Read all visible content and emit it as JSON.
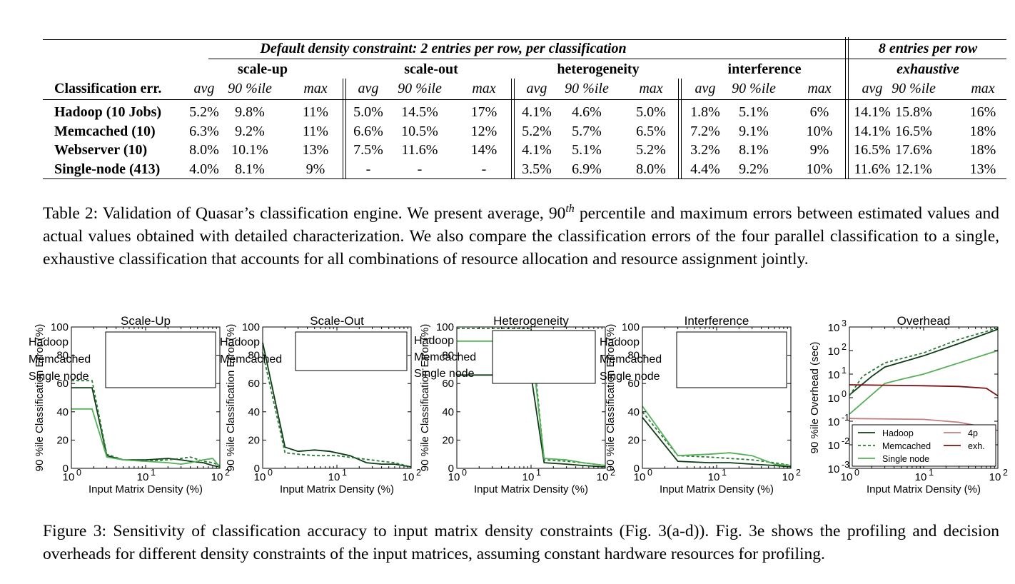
{
  "table": {
    "header_main": "Default density constraint: 2 entries per row, per classification",
    "header_right": "8 entries per row",
    "groups": [
      "scale-up",
      "scale-out",
      "heterogeneity",
      "interference",
      "exhaustive"
    ],
    "row_label_header": "Classification err.",
    "sub_headers": [
      "avg",
      "90 %ile",
      "max"
    ],
    "rows": [
      {
        "label": "Hadoop (10 Jobs)",
        "values": [
          "5.2%",
          "9.8%",
          "11%",
          "5.0%",
          "14.5%",
          "17%",
          "4.1%",
          "4.6%",
          "5.0%",
          "1.8%",
          "5.1%",
          "6%",
          "14.1%",
          "15.8%",
          "16%"
        ]
      },
      {
        "label": "Memcached (10)",
        "values": [
          "6.3%",
          "9.2%",
          "11%",
          "6.6%",
          "10.5%",
          "12%",
          "5.2%",
          "5.7%",
          "6.5%",
          "7.2%",
          "9.1%",
          "10%",
          "14.1%",
          "16.5%",
          "18%"
        ]
      },
      {
        "label": "Webserver (10)",
        "values": [
          "8.0%",
          "10.1%",
          "13%",
          "7.5%",
          "11.6%",
          "14%",
          "4.1%",
          "5.1%",
          "5.2%",
          "3.2%",
          "8.1%",
          "9%",
          "16.5%",
          "17.6%",
          "18%"
        ]
      },
      {
        "label": "Single-node (413)",
        "values": [
          "4.0%",
          "8.1%",
          "9%",
          "-",
          "-",
          "-",
          "3.5%",
          "6.9%",
          "8.0%",
          "4.4%",
          "9.2%",
          "10%",
          "11.6%",
          "12.1%",
          "13%"
        ]
      }
    ]
  },
  "table_caption": {
    "lead": "Table 2:  Validation of Quasar’s classification engine. We present average, 90",
    "sup": "th",
    "rest": " percentile and maximum errors between estimated values and actual values obtained with detailed characterization. We also compare the classification errors of the four parallel classification to a single, exhaustive classification that accounts for all combinations of resource allocation and resource assignment jointly."
  },
  "figure_caption": "Figure 3:  Sensitivity of classification accuracy to input matrix density constraints (Fig. 3(a-d)). Fig. 3e shows the profiling and decision overheads for different density constraints of the input matrices, assuming constant hardware resources for profiling.",
  "colors": {
    "hadoop": "#0d3b14",
    "memcached": "#2a7a35",
    "single": "#55b05a",
    "p4": "#c08080",
    "exh": "#7a1010"
  },
  "chart_data": [
    {
      "type": "line",
      "title": "Scale-Up",
      "xlabel": "Input Matrix Density (%)",
      "ylabel": "90 %ile Classification Error (%)",
      "xscale": "log",
      "xlim": [
        1,
        100
      ],
      "ylim": [
        0,
        100
      ],
      "yticks": [
        "0",
        "20",
        "40",
        "60",
        "80",
        "100"
      ],
      "legend": "top-right",
      "series": [
        {
          "name": "Hadoop",
          "color_key": "hadoop",
          "dash": false,
          "points": [
            [
              1,
              57
            ],
            [
              1.9,
              57
            ],
            [
              3,
              9
            ],
            [
              5,
              6
            ],
            [
              10,
              6
            ],
            [
              20,
              7
            ],
            [
              30,
              6
            ],
            [
              40,
              5
            ],
            [
              60,
              4
            ],
            [
              80,
              2
            ],
            [
              100,
              1
            ]
          ]
        },
        {
          "name": "Memcached",
          "color_key": "memcached",
          "dash": true,
          "points": [
            [
              1,
              62
            ],
            [
              1.9,
              62
            ],
            [
              3,
              10
            ],
            [
              5,
              6
            ],
            [
              10,
              5
            ],
            [
              20,
              6
            ],
            [
              30,
              7
            ],
            [
              40,
              8
            ],
            [
              60,
              5
            ],
            [
              80,
              4
            ],
            [
              100,
              2
            ]
          ]
        },
        {
          "name": "Single node",
          "color_key": "single",
          "dash": false,
          "points": [
            [
              1,
              42
            ],
            [
              1.9,
              42
            ],
            [
              3,
              8
            ],
            [
              5,
              6
            ],
            [
              10,
              5
            ],
            [
              20,
              4
            ],
            [
              30,
              3
            ],
            [
              40,
              4
            ],
            [
              60,
              6
            ],
            [
              80,
              7
            ],
            [
              100,
              1
            ]
          ]
        }
      ]
    },
    {
      "type": "line",
      "title": "Scale-Out",
      "xlabel": "Input Matrix Density (%)",
      "ylabel": "90 %ile Classification Error (%)",
      "xscale": "log",
      "xlim": [
        1,
        100
      ],
      "ylim": [
        0,
        100
      ],
      "yticks": [
        "0",
        "20",
        "40",
        "60",
        "80",
        "100"
      ],
      "legend": "top-right",
      "series": [
        {
          "name": "Hadoop",
          "color_key": "hadoop",
          "dash": false,
          "points": [
            [
              1,
              89
            ],
            [
              2,
              15
            ],
            [
              3,
              12
            ],
            [
              5,
              13
            ],
            [
              8,
              12
            ],
            [
              15,
              9
            ],
            [
              25,
              4
            ],
            [
              40,
              3
            ],
            [
              60,
              3
            ],
            [
              100,
              1
            ]
          ]
        },
        {
          "name": "Memcached",
          "color_key": "memcached",
          "dash": true,
          "points": [
            [
              1,
              82
            ],
            [
              2,
              11
            ],
            [
              3,
              10
            ],
            [
              5,
              9
            ],
            [
              10,
              9
            ],
            [
              20,
              7
            ],
            [
              40,
              5
            ],
            [
              60,
              4
            ],
            [
              100,
              1
            ]
          ]
        }
      ]
    },
    {
      "type": "line",
      "title": "Heterogeneity",
      "xlabel": "Input Matrix Density (%)",
      "ylabel": "90 %ile Classification Error (%)",
      "xscale": "log",
      "xlim": [
        1,
        100
      ],
      "ylim": [
        0,
        100
      ],
      "yticks": [
        "0",
        "20",
        "40",
        "60",
        "80",
        "100"
      ],
      "legend": "top-right",
      "series": [
        {
          "name": "Hadoop",
          "color_key": "hadoop",
          "dash": false,
          "points": [
            [
              1,
              66
            ],
            [
              10,
              66
            ],
            [
              15,
              4
            ],
            [
              30,
              3
            ],
            [
              50,
              2
            ],
            [
              100,
              1
            ]
          ]
        },
        {
          "name": "Memcached",
          "color_key": "memcached",
          "dash": true,
          "points": [
            [
              1,
              99
            ],
            [
              10,
              99
            ],
            [
              15,
              6
            ],
            [
              30,
              5
            ],
            [
              50,
              4
            ],
            [
              100,
              2
            ]
          ]
        },
        {
          "name": "Single node",
          "color_key": "single",
          "dash": false,
          "points": [
            [
              1,
              90
            ],
            [
              10,
              90
            ],
            [
              15,
              7
            ],
            [
              30,
              6
            ],
            [
              50,
              4
            ],
            [
              100,
              2
            ]
          ]
        }
      ]
    },
    {
      "type": "line",
      "title": "Interference",
      "xlabel": "Input Matrix Density (%)",
      "ylabel": "90 %ile Classification Error (%)",
      "xscale": "log",
      "xlim": [
        1,
        100
      ],
      "ylim": [
        0,
        100
      ],
      "yticks": [
        "0",
        "20",
        "40",
        "60",
        "80",
        "100"
      ],
      "legend": "top-right",
      "series": [
        {
          "name": "Hadoop",
          "color_key": "hadoop",
          "dash": false,
          "points": [
            [
              1,
              36
            ],
            [
              3,
              5
            ],
            [
              8,
              4
            ],
            [
              15,
              4
            ],
            [
              30,
              3
            ],
            [
              60,
              2
            ],
            [
              100,
              1
            ]
          ]
        },
        {
          "name": "Memcached",
          "color_key": "memcached",
          "dash": true,
          "points": [
            [
              1,
              40
            ],
            [
              3,
              9
            ],
            [
              8,
              8
            ],
            [
              15,
              7
            ],
            [
              30,
              6
            ],
            [
              60,
              4
            ],
            [
              100,
              2
            ]
          ]
        },
        {
          "name": "Single node",
          "color_key": "single",
          "dash": false,
          "points": [
            [
              1,
              44
            ],
            [
              3,
              9
            ],
            [
              8,
              10
            ],
            [
              15,
              11
            ],
            [
              30,
              9
            ],
            [
              60,
              3
            ],
            [
              100,
              2
            ]
          ]
        }
      ]
    },
    {
      "type": "line",
      "title": "Overhead",
      "xlabel": "Input Matrix Density (%)",
      "ylabel": "90 %ile Overhead (sec)",
      "xscale": "log",
      "yscale": "log",
      "xlim": [
        1,
        100
      ],
      "ylim": [
        0.001,
        1000
      ],
      "legend": "bottom",
      "series": [
        {
          "name": "Hadoop",
          "color_key": "hadoop",
          "dash": false,
          "points": [
            [
              1,
              1.3
            ],
            [
              2,
              8
            ],
            [
              3,
              20
            ],
            [
              10,
              60
            ],
            [
              30,
              200
            ],
            [
              100,
              800
            ]
          ]
        },
        {
          "name": "Memcached",
          "color_key": "memcached",
          "dash": true,
          "points": [
            [
              1,
              1.2
            ],
            [
              1.5,
              8
            ],
            [
              3,
              30
            ],
            [
              10,
              80
            ],
            [
              30,
              300
            ],
            [
              100,
              900
            ]
          ]
        },
        {
          "name": "Single node",
          "color_key": "single",
          "dash": false,
          "points": [
            [
              1,
              0.2
            ],
            [
              3,
              4
            ],
            [
              5,
              6
            ],
            [
              10,
              10
            ],
            [
              30,
              30
            ],
            [
              100,
              100
            ]
          ]
        },
        {
          "name": "4p",
          "color_key": "p4",
          "dash": false,
          "points": [
            [
              1,
              0.13
            ],
            [
              10,
              0.12
            ],
            [
              30,
              0.09
            ],
            [
              60,
              0.06
            ],
            [
              100,
              0.04
            ]
          ]
        },
        {
          "name": "exh.",
          "color_key": "exh",
          "dash": false,
          "points": [
            [
              1,
              3.5
            ],
            [
              10,
              3.2
            ],
            [
              30,
              3
            ],
            [
              70,
              2.5
            ],
            [
              100,
              1.2
            ]
          ]
        }
      ]
    }
  ]
}
